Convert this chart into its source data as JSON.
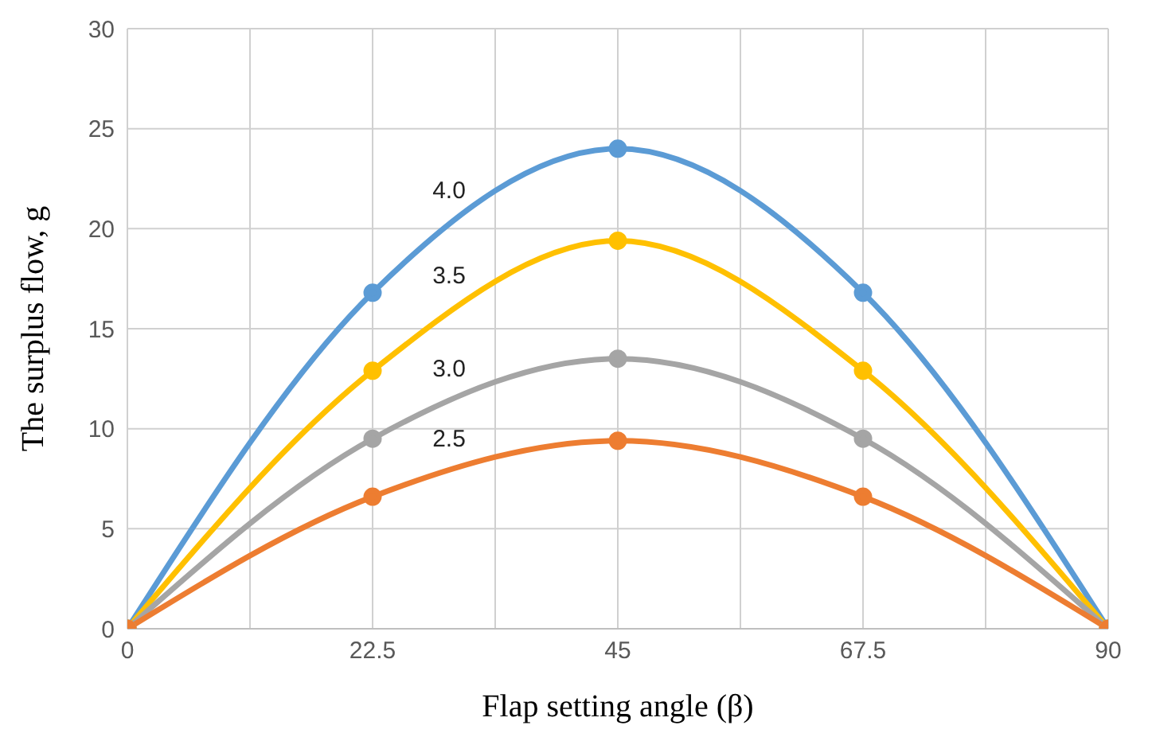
{
  "chart_data": {
    "type": "line",
    "xlabel": "Flap setting angle (β)",
    "ylabel": "The surplus flow, g",
    "x": [
      0,
      22.5,
      45,
      67.5,
      90
    ],
    "xlim": [
      0,
      90
    ],
    "xticks": [
      0,
      {
        "value": 11.25,
        "label": null
      },
      22.5,
      {
        "value": 33.75,
        "label": null
      },
      45,
      {
        "value": 56.25,
        "label": null
      },
      67.5,
      {
        "value": 78.75,
        "label": null
      },
      90
    ],
    "ylim": [
      0,
      30
    ],
    "yticks": [
      0,
      5,
      10,
      15,
      20,
      25,
      30
    ],
    "grid": true,
    "marker": "circle",
    "line_style": "solid",
    "series": [
      {
        "name": "4.0",
        "color": "#5b9bd5",
        "values": [
          0,
          16.8,
          24,
          16.8,
          0
        ]
      },
      {
        "name": "3.5",
        "color": "#ffc000",
        "values": [
          0,
          12.9,
          19.4,
          12.9,
          0
        ]
      },
      {
        "name": "3.0",
        "color": "#a5a5a5",
        "values": [
          0,
          9.5,
          13.5,
          9.5,
          0
        ]
      },
      {
        "name": "2.5",
        "color": "#ed7d31",
        "values": [
          0,
          6.6,
          9.4,
          6.6,
          0
        ]
      }
    ]
  }
}
